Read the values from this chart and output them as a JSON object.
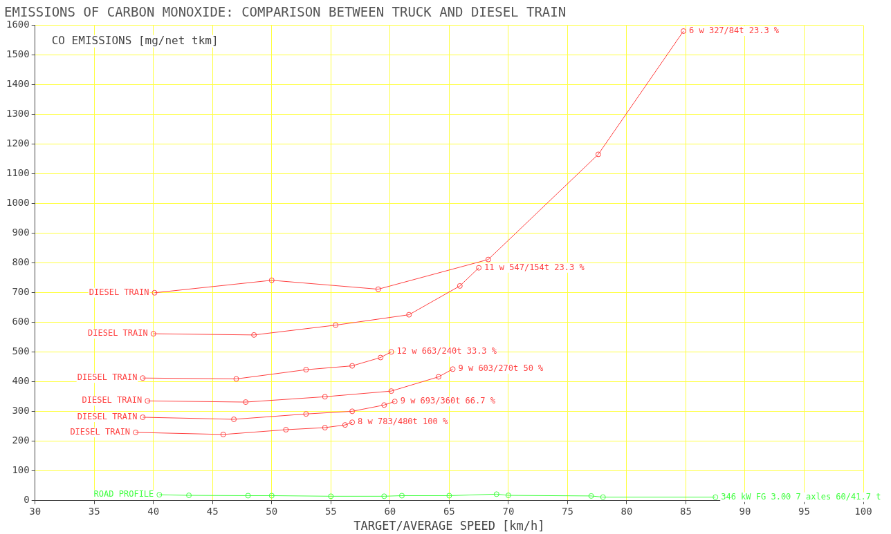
{
  "chart_data": {
    "type": "line",
    "title": "EMISSIONS OF CARBON MONOXIDE: COMPARISON BETWEEN TRUCK AND DIESEL TRAIN",
    "xlabel": "TARGET/AVERAGE SPEED [km/h]",
    "ylabel": "CO EMISSIONS [mg/net tkm]",
    "xlim": [
      30,
      100
    ],
    "xticks": [
      30,
      35,
      40,
      45,
      50,
      55,
      60,
      65,
      70,
      75,
      80,
      85,
      90,
      95,
      100
    ],
    "ylim": [
      0,
      1600
    ],
    "yticks": [
      0,
      100,
      200,
      300,
      400,
      500,
      600,
      700,
      800,
      900,
      1000,
      1100,
      1200,
      1300,
      1400,
      1500,
      1600
    ],
    "grid": true,
    "legend": false,
    "marker": "circle",
    "line_style": "solid",
    "series": [
      {
        "name": "DIESEL TRAIN",
        "color": "#ff4040",
        "x": [
          40.1,
          50.0,
          59.0,
          68.3,
          77.6,
          84.8
        ],
        "values": [
          700,
          742,
          712,
          812,
          1166,
          1581
        ]
      },
      {
        "name": "DIESEL TRAIN",
        "color": "#ff4040",
        "x": [
          40.0,
          48.5,
          55.4,
          61.6,
          65.9,
          67.5
        ],
        "values": [
          562,
          558,
          591,
          626,
          723,
          784
        ]
      },
      {
        "name": "DIESEL TRAIN",
        "color": "#ff4040",
        "x": [
          39.1,
          47.0,
          52.9,
          56.8,
          59.2,
          60.1
        ],
        "values": [
          413,
          410,
          441,
          454,
          482,
          501
        ]
      },
      {
        "name": "DIESEL TRAIN",
        "color": "#ff4040",
        "x": [
          39.5,
          47.8,
          54.5,
          60.1,
          64.1,
          65.3
        ],
        "values": [
          336,
          332,
          350,
          369,
          417,
          443
        ]
      },
      {
        "name": "DIESEL TRAIN",
        "color": "#ff4040",
        "x": [
          39.1,
          46.8,
          52.9,
          56.8,
          59.5,
          60.4
        ],
        "values": [
          281,
          274,
          292,
          301,
          322,
          334
        ]
      },
      {
        "name": "DIESEL TRAIN",
        "color": "#ff4040",
        "x": [
          38.5,
          45.9,
          51.2,
          54.5,
          56.2,
          56.8
        ],
        "values": [
          230,
          223,
          239,
          246,
          255,
          264
        ]
      },
      {
        "name": "ROAD PROFILE",
        "color": "#40ff40",
        "x": [
          40.5,
          43,
          48,
          50,
          55,
          59.5,
          61,
          65,
          69,
          70,
          77,
          78,
          87.5
        ],
        "values": [
          20,
          18,
          17,
          17,
          15,
          15,
          17,
          17,
          22,
          18,
          16,
          12,
          12
        ]
      }
    ],
    "annotations": [
      {
        "text": "6 w 327/84t 23.3 %",
        "x": 84.8,
        "y": 1581
      },
      {
        "text": "11 w 547/154t 23.3 %",
        "x": 67.5,
        "y": 784
      },
      {
        "text": "12 w 663/240t 33.3 %",
        "x": 60.1,
        "y": 501
      },
      {
        "text": "9 w 603/270t 50 %",
        "x": 65.3,
        "y": 443
      },
      {
        "text": "9 w 693/360t 66.7 %",
        "x": 60.4,
        "y": 334
      },
      {
        "text": "8 w 783/480t 100 %",
        "x": 56.8,
        "y": 264
      },
      {
        "text": "346 kW FG 3.00 7 axles 60/41.7 t",
        "x": 87.5,
        "y": 12
      }
    ]
  }
}
